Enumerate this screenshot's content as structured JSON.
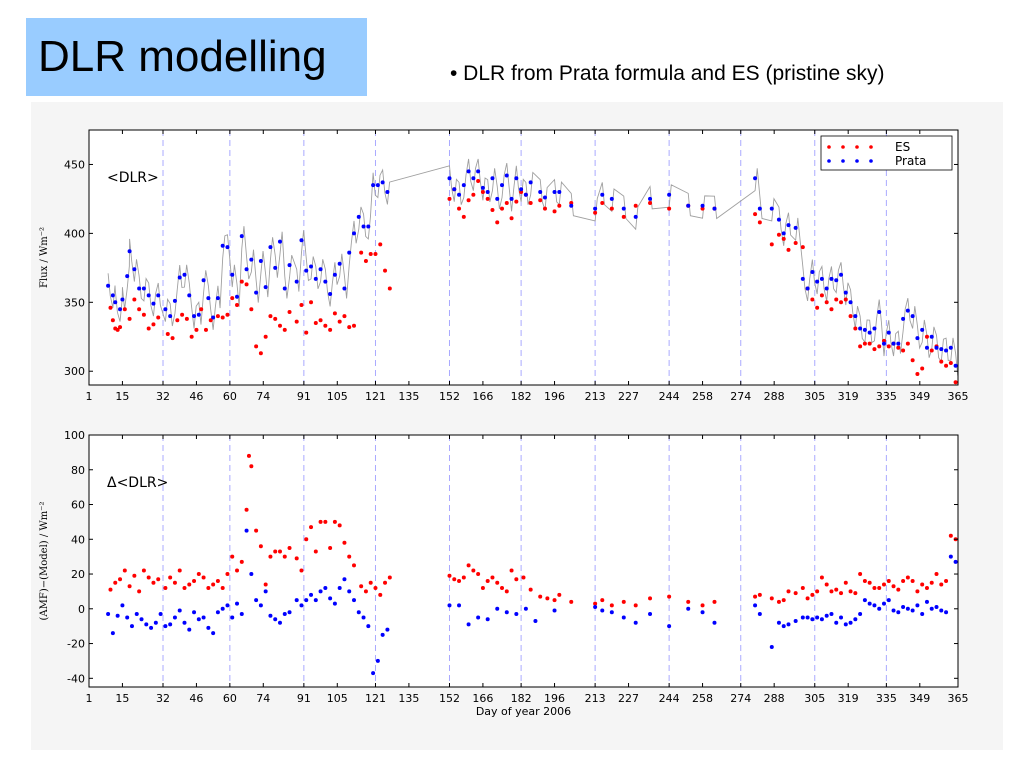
{
  "slide": {
    "title": "DLR modelling",
    "bullet": "• DLR from Prata formula and ES (pristine sky)"
  },
  "colors": {
    "title_bg": "#99ccff",
    "es": "#ff0000",
    "prata": "#0000ff",
    "amf_line": "#a0a0a0",
    "vlines": "#aaaaff"
  },
  "chart_data": [
    {
      "type": "scatter",
      "title": "",
      "annotation": "<DLR>",
      "xlabel": "",
      "ylabel": "Flux / Wm⁻²",
      "xlim": [
        1,
        365
      ],
      "ylim": [
        290,
        475
      ],
      "xticks": [
        1,
        15,
        32,
        46,
        60,
        74,
        91,
        105,
        121,
        135,
        152,
        166,
        182,
        196,
        213,
        227,
        244,
        258,
        274,
        288,
        305,
        319,
        335,
        349,
        365
      ],
      "yticks": [
        300,
        350,
        400,
        450
      ],
      "month_starts": [
        32,
        60,
        91,
        121,
        152,
        182,
        213,
        244,
        274,
        305,
        335
      ],
      "legend": {
        "placement": "top-right",
        "entries": [
          "ES",
          "Prata"
        ]
      },
      "series": [
        {
          "name": "ES",
          "x": [
            10,
            11,
            12,
            13,
            14,
            16,
            18,
            20,
            22,
            24,
            26,
            28,
            30,
            34,
            36,
            38,
            40,
            42,
            44,
            46,
            48,
            50,
            52,
            55,
            57,
            59,
            61,
            63,
            65,
            67,
            69,
            71,
            73,
            75,
            77,
            79,
            81,
            83,
            85,
            88,
            90,
            92,
            94,
            96,
            98,
            100,
            102,
            104,
            106,
            108,
            110,
            112,
            115,
            117,
            119,
            121,
            123,
            125,
            127,
            152,
            154,
            156,
            158,
            160,
            162,
            164,
            166,
            168,
            170,
            172,
            174,
            176,
            178,
            180,
            182,
            184,
            186,
            190,
            192,
            196,
            198,
            203,
            213,
            216,
            220,
            225,
            230,
            236,
            244,
            252,
            258,
            263,
            280,
            282,
            287,
            290,
            292,
            294,
            297,
            300,
            302,
            304,
            306,
            308,
            310,
            312,
            314,
            316,
            318,
            320,
            322,
            324,
            326,
            328,
            330,
            332,
            334,
            336,
            338,
            340,
            342,
            344,
            346,
            348,
            350,
            352,
            354,
            356,
            358,
            360,
            362,
            364
          ],
          "y": [
            346,
            337,
            331,
            330,
            332,
            345,
            338,
            352,
            345,
            341,
            331,
            334,
            339,
            327,
            324,
            337,
            341,
            338,
            325,
            330,
            345,
            330,
            337,
            340,
            339,
            341,
            353,
            348,
            365,
            363,
            345,
            318,
            313,
            325,
            340,
            338,
            333,
            330,
            343,
            336,
            348,
            328,
            350,
            335,
            337,
            333,
            330,
            342,
            336,
            340,
            332,
            333,
            386,
            380,
            385,
            385,
            392,
            373,
            360,
            425,
            432,
            418,
            412,
            424,
            428,
            438,
            430,
            425,
            417,
            408,
            418,
            422,
            411,
            423,
            430,
            428,
            422,
            424,
            418,
            416,
            420,
            422,
            415,
            422,
            418,
            412,
            420,
            422,
            418,
            420,
            418,
            418,
            414,
            408,
            392,
            399,
            396,
            388,
            393,
            390,
            360,
            352,
            346,
            355,
            350,
            345,
            352,
            350,
            352,
            340,
            331,
            318,
            320,
            320,
            316,
            318,
            322,
            318,
            320,
            317,
            315,
            320,
            308,
            298,
            302,
            325,
            315,
            318,
            307,
            304,
            306,
            292
          ]
        },
        {
          "name": "Prata",
          "x": [
            9,
            11,
            12,
            14,
            15,
            17,
            18,
            20,
            22,
            24,
            26,
            28,
            30,
            33,
            35,
            37,
            39,
            41,
            43,
            45,
            47,
            49,
            51,
            53,
            55,
            57,
            59,
            61,
            63,
            65,
            67,
            69,
            71,
            73,
            75,
            77,
            79,
            81,
            83,
            85,
            88,
            90,
            92,
            94,
            96,
            98,
            100,
            102,
            104,
            106,
            108,
            110,
            112,
            114,
            116,
            118,
            120,
            122,
            124,
            126,
            152,
            154,
            156,
            158,
            160,
            162,
            164,
            166,
            168,
            170,
            172,
            174,
            176,
            178,
            180,
            182,
            184,
            186,
            190,
            192,
            196,
            198,
            203,
            213,
            216,
            220,
            225,
            230,
            236,
            244,
            252,
            258,
            263,
            280,
            282,
            287,
            290,
            292,
            294,
            297,
            300,
            302,
            304,
            306,
            308,
            310,
            312,
            314,
            316,
            318,
            320,
            322,
            324,
            326,
            328,
            330,
            332,
            334,
            336,
            338,
            340,
            342,
            344,
            346,
            348,
            350,
            352,
            354,
            356,
            358,
            360,
            362,
            364
          ],
          "y": [
            362,
            355,
            350,
            345,
            352,
            369,
            387,
            374,
            360,
            360,
            355,
            349,
            355,
            345,
            340,
            351,
            368,
            370,
            355,
            340,
            341,
            366,
            353,
            339,
            353,
            391,
            390,
            370,
            354,
            398,
            374,
            381,
            357,
            380,
            361,
            390,
            375,
            394,
            360,
            377,
            365,
            395,
            373,
            376,
            367,
            374,
            365,
            356,
            370,
            378,
            360,
            386,
            400,
            412,
            405,
            405,
            435,
            435,
            437,
            430,
            440,
            432,
            428,
            435,
            445,
            440,
            445,
            433,
            430,
            440,
            425,
            435,
            442,
            425,
            440,
            432,
            428,
            437,
            430,
            426,
            430,
            430,
            420,
            418,
            428,
            425,
            418,
            412,
            425,
            428,
            420,
            420,
            418,
            440,
            418,
            418,
            410,
            400,
            406,
            404,
            367,
            360,
            372,
            365,
            367,
            360,
            367,
            366,
            370,
            357,
            350,
            340,
            331,
            330,
            328,
            331,
            343,
            320,
            328,
            320,
            320,
            338,
            344,
            340,
            324,
            330,
            317,
            325,
            317,
            316,
            315,
            317,
            304
          ]
        }
      ]
    },
    {
      "type": "scatter",
      "title": "",
      "annotation": "Δ<DLR>",
      "xlabel": "Day of year 2006",
      "ylabel": "(AMF)−(Model) / Wm⁻²",
      "xlim": [
        1,
        365
      ],
      "ylim": [
        -45,
        100
      ],
      "xticks": [
        1,
        15,
        32,
        46,
        60,
        74,
        91,
        105,
        121,
        135,
        152,
        166,
        182,
        196,
        213,
        227,
        244,
        258,
        274,
        288,
        305,
        319,
        335,
        349,
        365
      ],
      "yticks": [
        -40,
        -20,
        0,
        20,
        40,
        60,
        80,
        100
      ],
      "month_starts": [
        32,
        60,
        91,
        121,
        152,
        182,
        213,
        244,
        274,
        305,
        335
      ],
      "series": [
        {
          "name": "ES",
          "x": [
            10,
            12,
            14,
            16,
            18,
            20,
            22,
            24,
            26,
            28,
            30,
            33,
            35,
            37,
            39,
            41,
            43,
            45,
            47,
            49,
            51,
            53,
            55,
            57,
            59,
            61,
            63,
            65,
            67,
            68,
            69,
            71,
            73,
            75,
            77,
            79,
            81,
            83,
            85,
            88,
            90,
            92,
            94,
            96,
            98,
            100,
            102,
            104,
            106,
            108,
            110,
            112,
            115,
            117,
            119,
            121,
            123,
            125,
            127,
            152,
            154,
            156,
            158,
            160,
            162,
            164,
            166,
            168,
            170,
            172,
            174,
            176,
            178,
            180,
            183,
            186,
            190,
            193,
            196,
            198,
            203,
            213,
            216,
            220,
            225,
            230,
            236,
            244,
            252,
            258,
            263,
            280,
            282,
            287,
            290,
            292,
            294,
            297,
            300,
            302,
            304,
            306,
            308,
            310,
            312,
            314,
            316,
            318,
            320,
            322,
            324,
            326,
            328,
            330,
            332,
            334,
            336,
            338,
            340,
            342,
            344,
            346,
            348,
            350,
            352,
            354,
            356,
            358,
            360,
            362,
            364
          ],
          "y": [
            11,
            15,
            17,
            22,
            13,
            19,
            10,
            22,
            18,
            15,
            17,
            12,
            18,
            15,
            22,
            12,
            14,
            16,
            20,
            18,
            12,
            14,
            16,
            12,
            20,
            30,
            22,
            27,
            57,
            88,
            82,
            45,
            36,
            14,
            30,
            33,
            33,
            30,
            35,
            29,
            22,
            40,
            47,
            33,
            50,
            50,
            35,
            50,
            48,
            38,
            30,
            25,
            13,
            10,
            15,
            12,
            8,
            15,
            18,
            19,
            17,
            16,
            18,
            25,
            22,
            20,
            12,
            16,
            18,
            15,
            12,
            10,
            22,
            17,
            18,
            11,
            7,
            6,
            5,
            8,
            4,
            3,
            5,
            2,
            4,
            2,
            6,
            7,
            4,
            2,
            4,
            7,
            8,
            6,
            4,
            5,
            10,
            9,
            12,
            6,
            8,
            10,
            18,
            14,
            10,
            11,
            9,
            15,
            10,
            9,
            20,
            16,
            15,
            12,
            12,
            14,
            16,
            13,
            11,
            16,
            18,
            16,
            10,
            14,
            12,
            15,
            20,
            14,
            16,
            42,
            40
          ]
        },
        {
          "name": "Prata",
          "x": [
            9,
            11,
            13,
            15,
            17,
            19,
            21,
            23,
            25,
            27,
            29,
            31,
            33,
            35,
            37,
            39,
            41,
            43,
            45,
            47,
            49,
            51,
            53,
            55,
            57,
            59,
            61,
            63,
            65,
            67,
            69,
            71,
            73,
            75,
            77,
            79,
            81,
            83,
            85,
            88,
            90,
            92,
            94,
            96,
            98,
            100,
            102,
            104,
            106,
            108,
            110,
            112,
            114,
            116,
            118,
            120,
            122,
            124,
            126,
            152,
            156,
            160,
            164,
            168,
            172,
            176,
            180,
            184,
            188,
            196,
            213,
            216,
            220,
            225,
            230,
            236,
            244,
            252,
            258,
            263,
            280,
            282,
            287,
            290,
            292,
            294,
            297,
            300,
            302,
            304,
            306,
            308,
            310,
            312,
            314,
            316,
            318,
            320,
            322,
            324,
            326,
            328,
            330,
            332,
            334,
            336,
            338,
            340,
            342,
            344,
            346,
            348,
            350,
            352,
            354,
            356,
            358,
            360,
            362,
            364
          ],
          "y": [
            -3,
            -14,
            -4,
            2,
            -5,
            -10,
            -3,
            -6,
            -9,
            -11,
            -8,
            -3,
            -10,
            -9,
            -5,
            -1,
            -8,
            -12,
            -2,
            -6,
            -5,
            -11,
            -14,
            -2,
            0,
            2,
            -5,
            3,
            -3,
            45,
            20,
            5,
            2,
            10,
            -4,
            -6,
            -8,
            -3,
            -2,
            5,
            2,
            5,
            8,
            5,
            10,
            12,
            6,
            3,
            12,
            17,
            10,
            5,
            -2,
            -5,
            -10,
            -37,
            -30,
            -15,
            -12,
            2,
            2,
            -9,
            -5,
            -6,
            0,
            -2,
            -3,
            0,
            -7,
            -1,
            1,
            -1,
            -2,
            -5,
            -8,
            -3,
            -10,
            0,
            -2,
            -8,
            2,
            -3,
            -22,
            -8,
            -10,
            -9,
            -7,
            -5,
            -5,
            -6,
            -5,
            -6,
            -4,
            -3,
            -8,
            -5,
            -9,
            -8,
            -6,
            -3,
            5,
            3,
            2,
            0,
            3,
            5,
            -1,
            -2,
            1,
            0,
            -1,
            2,
            -3,
            4,
            0,
            1,
            -1,
            -2,
            30,
            27
          ]
        }
      ]
    }
  ]
}
